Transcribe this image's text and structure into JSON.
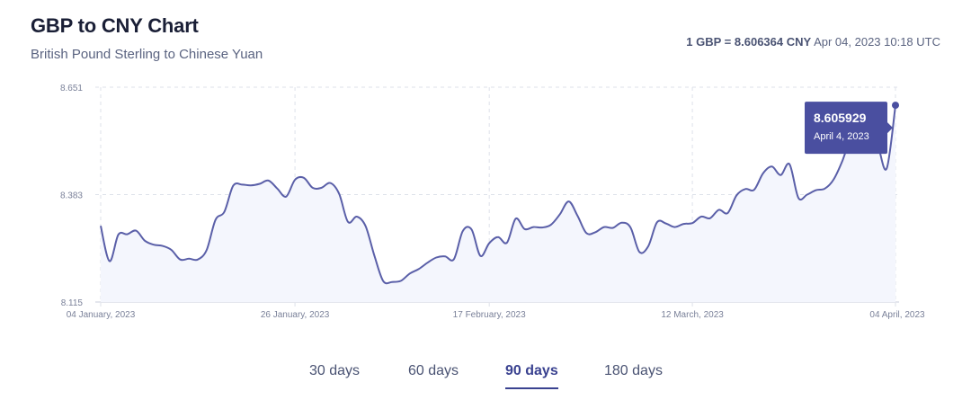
{
  "header": {
    "title": "GBP to CNY Chart",
    "subtitle": "British Pound Sterling to Chinese Yuan",
    "rate_strong": "1 GBP = 8.606364 CNY",
    "rate_time": "Apr 04, 2023 10:18 UTC"
  },
  "tabs": [
    {
      "label": "30 days",
      "active": false
    },
    {
      "label": "60 days",
      "active": false
    },
    {
      "label": "90 days",
      "active": true
    },
    {
      "label": "180 days",
      "active": false
    }
  ],
  "colors": {
    "line": "#5a5fa8",
    "fill": "#f4f6fd",
    "tooltip_bg": "#4a4fa0",
    "grid": "#dde1ea",
    "tick": "#7a8199",
    "accent": "#3a4290"
  },
  "tooltip": {
    "value": "8.605929",
    "date": "April 4, 2023"
  },
  "chart_data": {
    "type": "area",
    "title": "GBP to CNY Chart",
    "subtitle": "British Pound Sterling to Chinese Yuan",
    "ylim": [
      8.115,
      8.651
    ],
    "yticks": [
      "8.651",
      "8.383",
      "8.115"
    ],
    "xlim": [
      "2023-01-04",
      "2023-04-04"
    ],
    "xticks": [
      "04 January, 2023",
      "26 January, 2023",
      "17 February, 2023",
      "12 March, 2023",
      "04 April, 2023"
    ],
    "grid": true,
    "legend": "none",
    "series": [
      {
        "points": [
          [
            "2023-01-04",
            8.305
          ],
          [
            "2023-01-05",
            8.217
          ],
          [
            "2023-01-06",
            8.283
          ],
          [
            "2023-01-07",
            8.284
          ],
          [
            "2023-01-08",
            8.293
          ],
          [
            "2023-01-09",
            8.268
          ],
          [
            "2023-01-10",
            8.258
          ],
          [
            "2023-01-11",
            8.255
          ],
          [
            "2023-01-12",
            8.245
          ],
          [
            "2023-01-13",
            8.221
          ],
          [
            "2023-01-14",
            8.223
          ],
          [
            "2023-01-15",
            8.221
          ],
          [
            "2023-01-16",
            8.245
          ],
          [
            "2023-01-17",
            8.32
          ],
          [
            "2023-01-18",
            8.34
          ],
          [
            "2023-01-19",
            8.405
          ],
          [
            "2023-01-20",
            8.408
          ],
          [
            "2023-01-21",
            8.406
          ],
          [
            "2023-01-22",
            8.41
          ],
          [
            "2023-01-23",
            8.418
          ],
          [
            "2023-01-24",
            8.398
          ],
          [
            "2023-01-25",
            8.378
          ],
          [
            "2023-01-26",
            8.42
          ],
          [
            "2023-01-27",
            8.425
          ],
          [
            "2023-01-28",
            8.4
          ],
          [
            "2023-01-29",
            8.4
          ],
          [
            "2023-01-30",
            8.412
          ],
          [
            "2023-01-31",
            8.385
          ],
          [
            "2023-02-01",
            8.315
          ],
          [
            "2023-02-02",
            8.328
          ],
          [
            "2023-02-03",
            8.304
          ],
          [
            "2023-02-04",
            8.23
          ],
          [
            "2023-02-05",
            8.167
          ],
          [
            "2023-02-06",
            8.165
          ],
          [
            "2023-02-07",
            8.168
          ],
          [
            "2023-02-08",
            8.186
          ],
          [
            "2023-02-09",
            8.197
          ],
          [
            "2023-02-10",
            8.213
          ],
          [
            "2023-02-11",
            8.226
          ],
          [
            "2023-02-12",
            8.229
          ],
          [
            "2023-02-13",
            8.222
          ],
          [
            "2023-02-14",
            8.292
          ],
          [
            "2023-02-15",
            8.296
          ],
          [
            "2023-02-16",
            8.23
          ],
          [
            "2023-02-17",
            8.262
          ],
          [
            "2023-02-18",
            8.277
          ],
          [
            "2023-02-19",
            8.263
          ],
          [
            "2023-02-20",
            8.323
          ],
          [
            "2023-02-21",
            8.297
          ],
          [
            "2023-02-22",
            8.302
          ],
          [
            "2023-02-23",
            8.301
          ],
          [
            "2023-02-24",
            8.308
          ],
          [
            "2023-02-25",
            8.334
          ],
          [
            "2023-02-26",
            8.366
          ],
          [
            "2023-02-27",
            8.33
          ],
          [
            "2023-02-28",
            8.287
          ],
          [
            "2023-03-01",
            8.289
          ],
          [
            "2023-03-02",
            8.302
          ],
          [
            "2023-03-03",
            8.3
          ],
          [
            "2023-03-04",
            8.313
          ],
          [
            "2023-03-05",
            8.301
          ],
          [
            "2023-03-06",
            8.24
          ],
          [
            "2023-03-07",
            8.254
          ],
          [
            "2023-03-08",
            8.314
          ],
          [
            "2023-03-09",
            8.311
          ],
          [
            "2023-03-10",
            8.302
          ],
          [
            "2023-03-11",
            8.31
          ],
          [
            "2023-03-12",
            8.312
          ],
          [
            "2023-03-13",
            8.328
          ],
          [
            "2023-03-14",
            8.324
          ],
          [
            "2023-03-15",
            8.345
          ],
          [
            "2023-03-16",
            8.337
          ],
          [
            "2023-03-17",
            8.381
          ],
          [
            "2023-03-18",
            8.397
          ],
          [
            "2023-03-19",
            8.395
          ],
          [
            "2023-03-20",
            8.436
          ],
          [
            "2023-03-21",
            8.453
          ],
          [
            "2023-03-22",
            8.432
          ],
          [
            "2023-03-23",
            8.459
          ],
          [
            "2023-03-24",
            8.375
          ],
          [
            "2023-03-25",
            8.383
          ],
          [
            "2023-03-26",
            8.394
          ],
          [
            "2023-03-27",
            8.398
          ],
          [
            "2023-03-28",
            8.421
          ],
          [
            "2023-03-29",
            8.468
          ],
          [
            "2023-03-30",
            8.529
          ],
          [
            "2023-03-31",
            8.553
          ],
          [
            "2023-04-01",
            8.555
          ],
          [
            "2023-04-02",
            8.507
          ],
          [
            "2023-04-03",
            8.448
          ],
          [
            "2023-04-04",
            8.606
          ]
        ]
      }
    ],
    "annotations": [
      {
        "x": "2023-04-04",
        "y": 8.605929,
        "label": "8.605929",
        "sublabel": "April 4, 2023"
      }
    ]
  }
}
